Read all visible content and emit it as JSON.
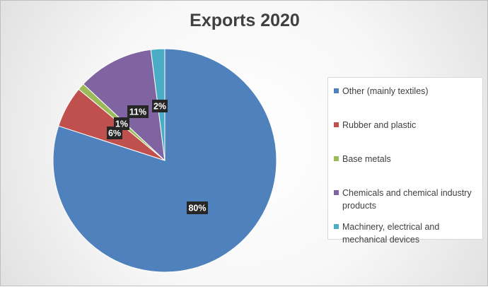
{
  "chart_data": {
    "type": "pie",
    "title": "Exports 2020",
    "slices": [
      {
        "label": "Other (mainly textiles)",
        "value": 80,
        "display": "80%",
        "color": "#4F81BD"
      },
      {
        "label": "Rubber and plastic",
        "value": 6,
        "display": "6%",
        "color": "#C0504D"
      },
      {
        "label": "Base metals",
        "value": 1,
        "display": "1%",
        "color": "#9BBB59"
      },
      {
        "label": "Chemicals and chemical industry products",
        "value": 11,
        "display": "11%",
        "color": "#8064A2"
      },
      {
        "label": "Machinery, electrical and mechanical devices",
        "value": 2,
        "display": "2%",
        "color": "#4BACC6"
      }
    ],
    "legend_position": "right",
    "grid": false
  }
}
